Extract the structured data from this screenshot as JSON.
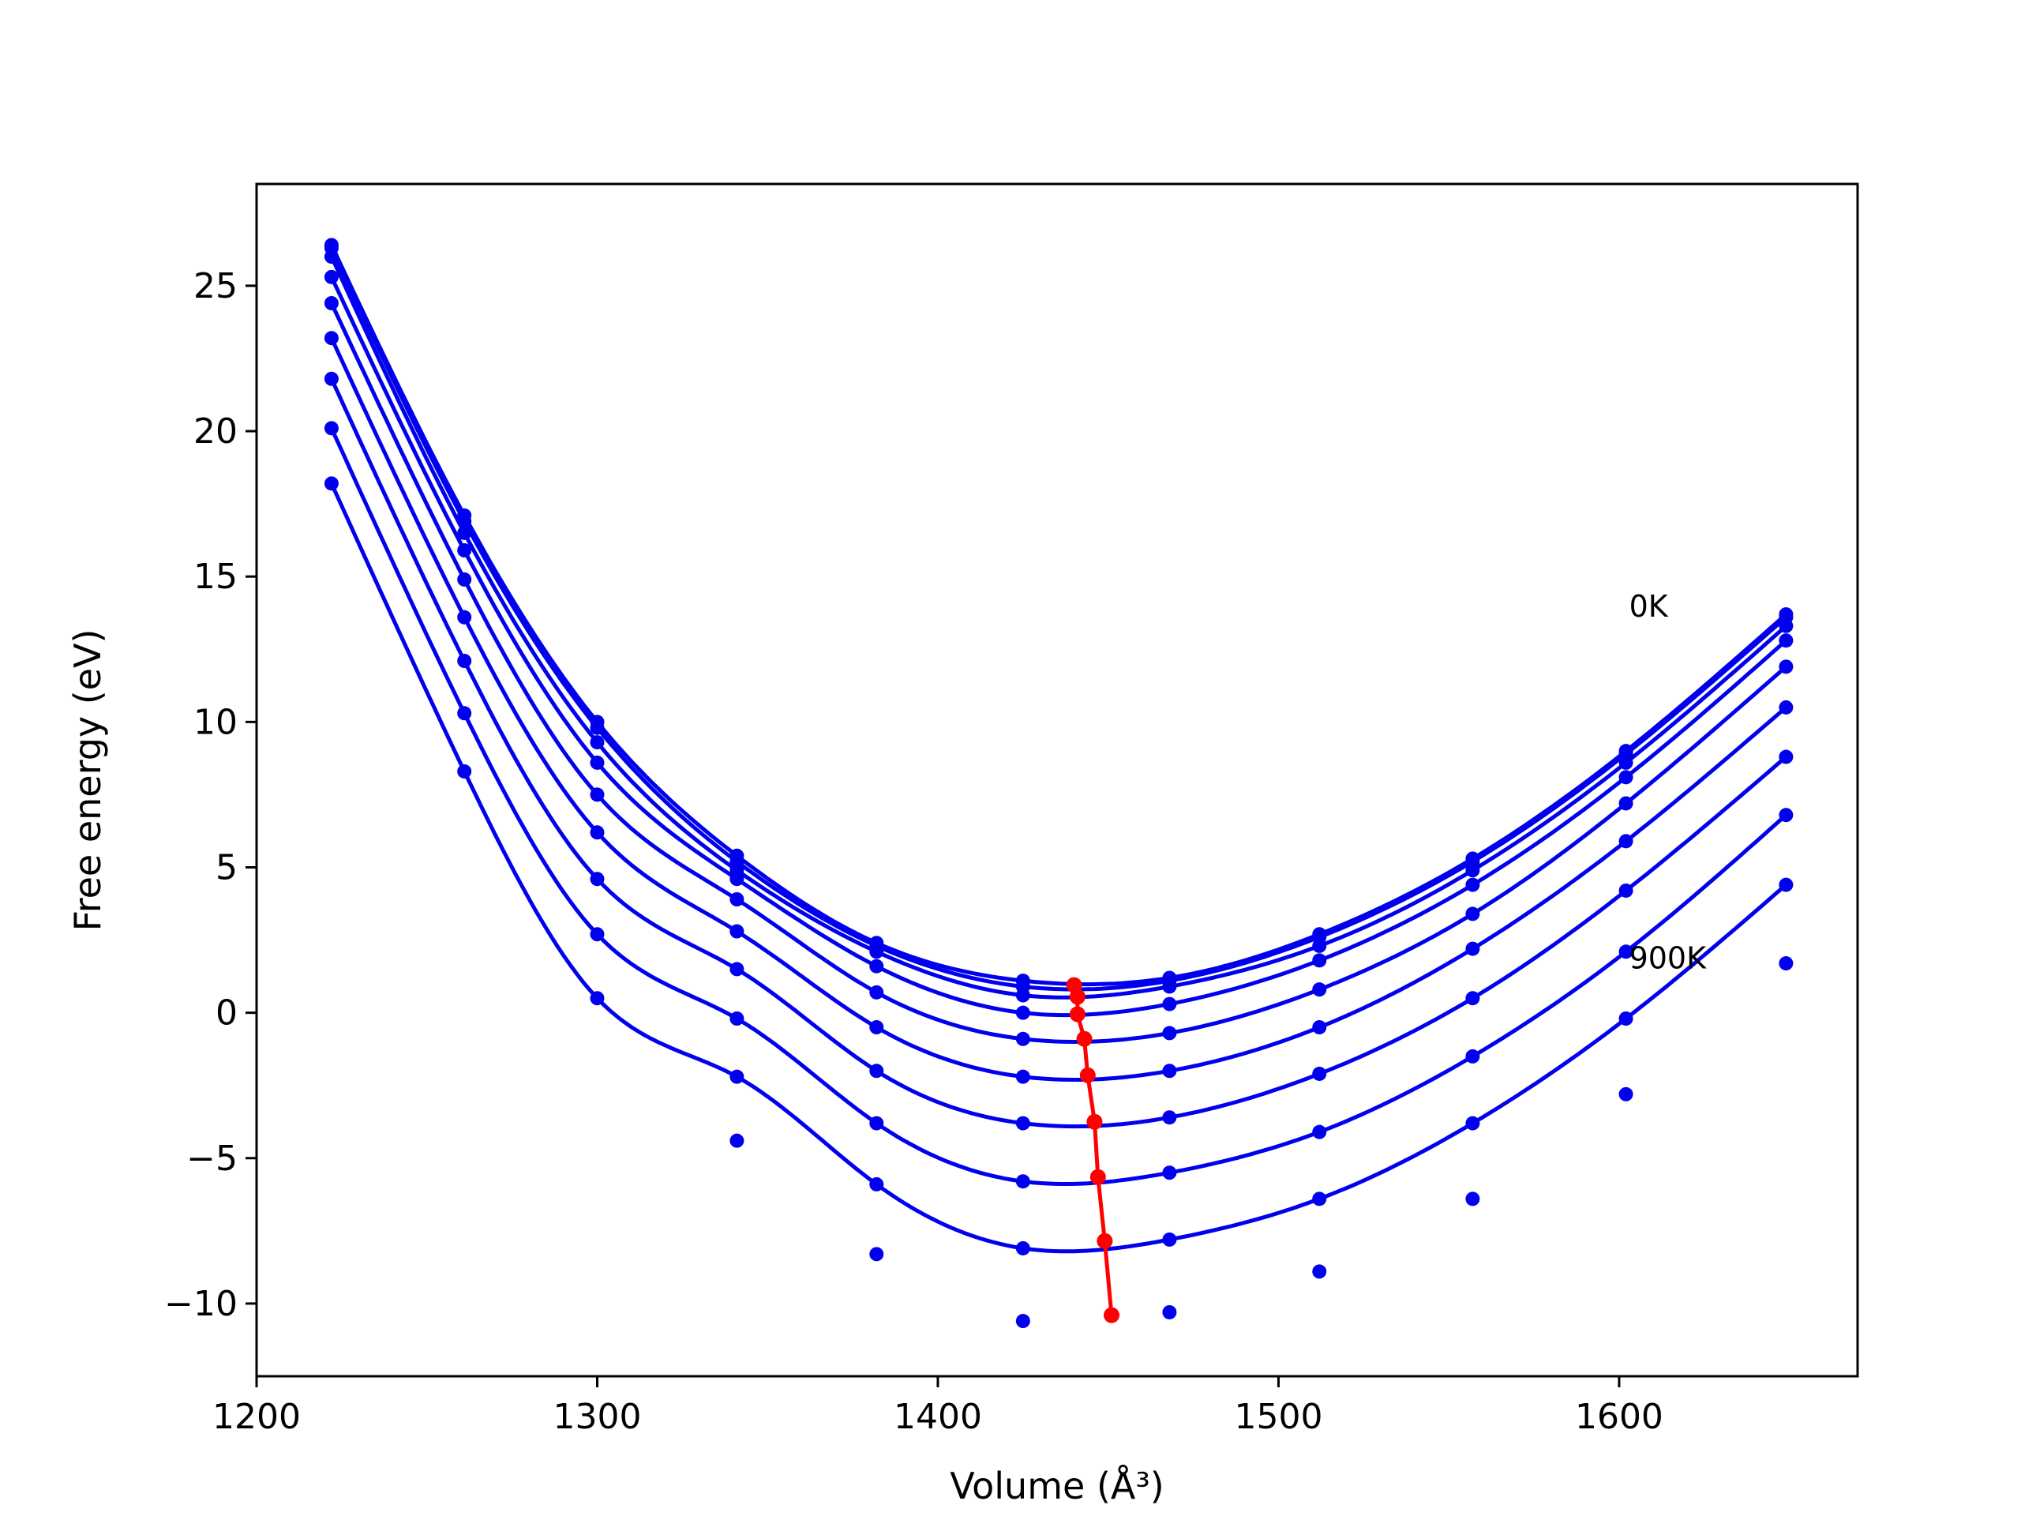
{
  "chart_data": {
    "type": "line",
    "xlabel": "Volume (Å³)",
    "ylabel": "Free energy (eV)",
    "xlim": [
      1200,
      1670
    ],
    "ylim": [
      -12.5,
      28.5
    ],
    "xticks": [
      1200,
      1300,
      1400,
      1500,
      1600
    ],
    "yticks": [
      -10,
      -5,
      0,
      5,
      10,
      15,
      20,
      25
    ],
    "ytick_labels": [
      "−10",
      "−5",
      "0",
      "5",
      "10",
      "15",
      "20",
      "25"
    ],
    "grid": false,
    "legend": "none",
    "annotations": [
      {
        "text": "0K",
        "x": 1602,
        "y": 14.0
      },
      {
        "text": "900K",
        "x": 1602,
        "y": 1.9
      }
    ],
    "x": [
      1222,
      1261,
      1300,
      1341,
      1382,
      1425,
      1468,
      1512,
      1557,
      1602,
      1649
    ],
    "series": [
      {
        "values": [
          26.4,
          17.1,
          10.0,
          5.4,
          2.4,
          1.1,
          1.2,
          2.7,
          5.3,
          9.0,
          13.7
        ]
      },
      {
        "values": [
          26.3,
          16.9,
          9.8,
          5.2,
          2.3,
          0.9,
          1.1,
          2.6,
          5.2,
          8.9,
          13.6
        ]
      },
      {
        "values": [
          26.0,
          16.5,
          9.3,
          4.9,
          2.1,
          0.6,
          0.9,
          2.3,
          4.9,
          8.6,
          13.3
        ]
      },
      {
        "values": [
          25.3,
          15.9,
          8.6,
          4.6,
          1.6,
          0.0,
          0.3,
          1.8,
          4.4,
          8.1,
          12.8
        ]
      },
      {
        "values": [
          24.4,
          14.9,
          7.5,
          3.9,
          0.7,
          -0.9,
          -0.7,
          0.8,
          3.4,
          7.2,
          11.9
        ]
      },
      {
        "values": [
          23.2,
          13.6,
          6.2,
          2.8,
          -0.5,
          -2.2,
          -2.0,
          -0.5,
          2.2,
          5.9,
          10.5
        ]
      },
      {
        "values": [
          21.8,
          12.1,
          4.6,
          1.5,
          -2.0,
          -3.8,
          -3.6,
          -2.1,
          0.5,
          4.2,
          8.8
        ]
      },
      {
        "values": [
          20.1,
          10.3,
          2.7,
          -0.2,
          -3.8,
          -5.8,
          -5.5,
          -4.1,
          -1.5,
          2.1,
          6.8
        ]
      },
      {
        "values": [
          18.2,
          8.3,
          0.5,
          -2.2,
          -5.9,
          -8.1,
          -7.8,
          -6.4,
          -3.8,
          -0.2,
          4.4
        ]
      },
      {
        "values": [
          null,
          null,
          null,
          -4.4,
          -8.3,
          -10.6,
          -10.3,
          -8.9,
          -6.4,
          -2.8,
          1.7
        ]
      }
    ],
    "minima": {
      "x": [
        1440,
        1441,
        1441,
        1443,
        1444,
        1446,
        1447,
        1449,
        1451
      ],
      "y": [
        0.95,
        0.55,
        -0.05,
        -0.9,
        -2.15,
        -3.75,
        -5.65,
        -7.85,
        -10.4
      ]
    },
    "colors": {
      "curves": "#0000ee",
      "minima": "#ff0000",
      "axes": "#000000"
    }
  }
}
